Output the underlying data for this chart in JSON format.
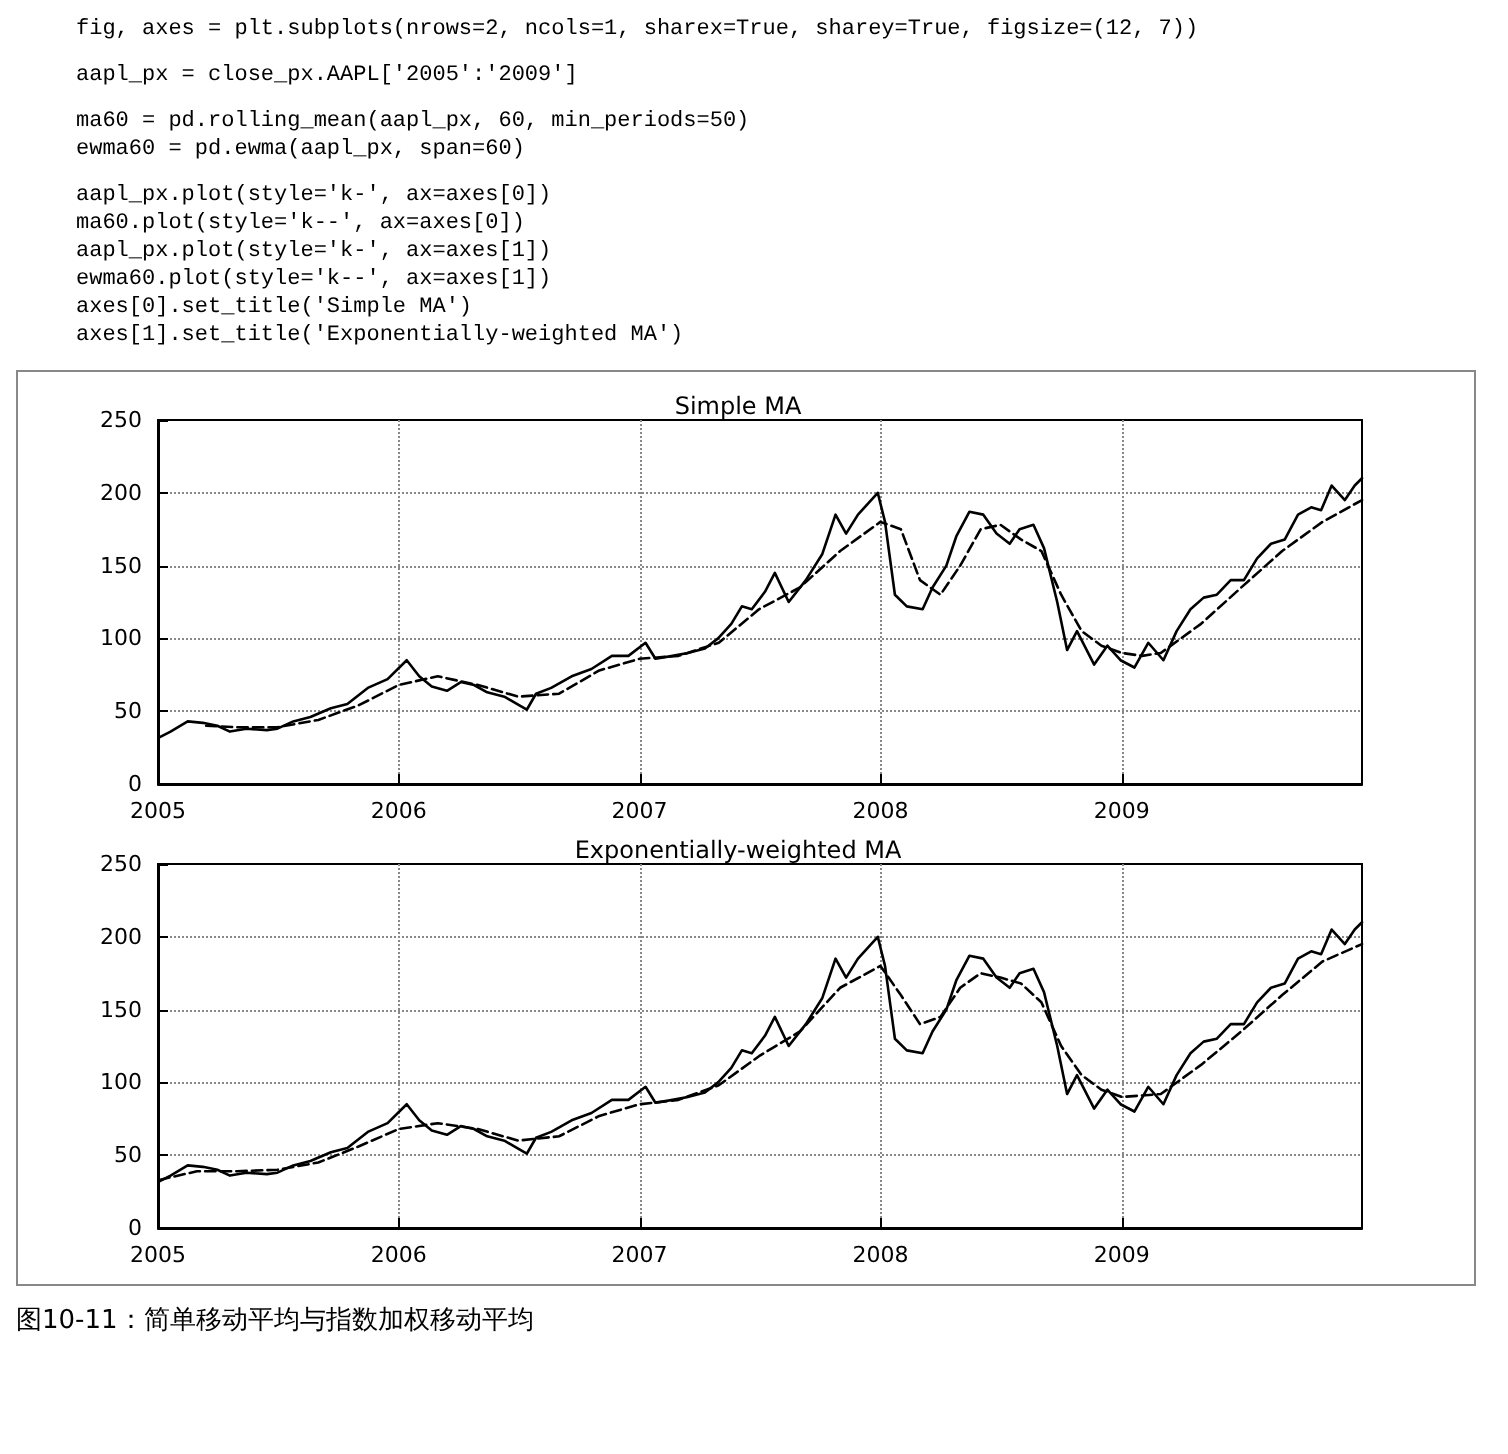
{
  "chart_data": [
    {
      "type": "line",
      "title": "Simple MA",
      "annotations": [
        "fig, axes = plt.subplots(nrows=2, ncols=1, sharex=True, sharey=True, figsize=(12, 7))",
        "aapl_px = close_px.AAPL['2005':'2009']",
        "ma60 = pd.rolling_mean(aapl_px, 60, min_periods=50)",
        "ewma60 = pd.ewma(aapl_px, span=60)",
        "aapl_px.plot(style='k-', ax=axes[0])",
        "ma60.plot(style='k--', ax=axes[0])",
        "aapl_px.plot(style='k-', ax=axes[1])",
        "ewma60.plot(style='k--', ax=axes[1])",
        "axes[0].set_title('Simple MA')",
        "axes[1].set_title('Exponentially-weighted MA')"
      ],
      "xlim": [
        "2005-01-01",
        "2009-12-31"
      ],
      "xticks": [
        "2005",
        "2006",
        "2007",
        "2008",
        "2009"
      ],
      "ylim": [
        0,
        250
      ],
      "yticks": [
        0,
        50,
        100,
        150,
        200,
        250
      ],
      "grid": true,
      "marker": "none",
      "series": [
        {
          "color": "#000000",
          "line_style": "solid",
          "x": [
            "2005-01-03",
            "2005-01-20",
            "2005-02-15",
            "2005-03-10",
            "2005-04-01",
            "2005-04-20",
            "2005-05-15",
            "2005-06-15",
            "2005-07-01",
            "2005-07-25",
            "2005-08-20",
            "2005-09-20",
            "2005-10-15",
            "2005-11-15",
            "2005-12-15",
            "2006-01-13",
            "2006-02-01",
            "2006-02-20",
            "2006-03-15",
            "2006-04-05",
            "2006-04-25",
            "2006-05-15",
            "2006-06-10",
            "2006-07-14",
            "2006-07-28",
            "2006-08-20",
            "2006-09-20",
            "2006-10-20",
            "2006-11-20",
            "2006-12-15",
            "2007-01-10",
            "2007-01-25",
            "2007-02-20",
            "2007-03-15",
            "2007-04-10",
            "2007-04-30",
            "2007-05-20",
            "2007-06-05",
            "2007-06-20",
            "2007-07-10",
            "2007-07-25",
            "2007-08-15",
            "2007-09-10",
            "2007-10-05",
            "2007-10-25",
            "2007-11-10",
            "2007-11-28",
            "2007-12-28",
            "2008-01-08",
            "2008-01-23",
            "2008-02-10",
            "2008-03-05",
            "2008-03-20",
            "2008-04-10",
            "2008-04-25",
            "2008-05-15",
            "2008-06-05",
            "2008-06-25",
            "2008-07-15",
            "2008-07-30",
            "2008-08-20",
            "2008-09-05",
            "2008-09-25",
            "2008-10-10",
            "2008-10-25",
            "2008-11-20",
            "2008-12-10",
            "2008-12-30",
            "2009-01-20",
            "2009-02-10",
            "2009-03-05",
            "2009-03-25",
            "2009-04-15",
            "2009-05-05",
            "2009-05-25",
            "2009-06-15",
            "2009-07-05",
            "2009-07-25",
            "2009-08-15",
            "2009-09-05",
            "2009-09-25",
            "2009-10-15",
            "2009-10-30",
            "2009-11-15",
            "2009-12-05",
            "2009-12-20",
            "2009-12-31"
          ],
          "values": [
            32,
            36,
            43,
            42,
            40,
            36,
            38,
            37,
            38,
            43,
            46,
            52,
            55,
            66,
            72,
            85,
            74,
            67,
            64,
            70,
            68,
            63,
            60,
            51,
            62,
            66,
            74,
            79,
            88,
            88,
            97,
            86,
            88,
            90,
            93,
            100,
            110,
            122,
            120,
            132,
            145,
            125,
            140,
            158,
            185,
            172,
            185,
            200,
            180,
            130,
            122,
            120,
            135,
            150,
            170,
            187,
            185,
            172,
            165,
            175,
            178,
            162,
            125,
            92,
            105,
            82,
            95,
            85,
            80,
            97,
            85,
            105,
            120,
            128,
            130,
            140,
            140,
            155,
            165,
            168,
            185,
            190,
            188,
            205,
            195,
            205,
            210
          ]
        },
        {
          "color": "#000000",
          "line_style": "dashed",
          "x": [
            "2005-03-15",
            "2005-05-01",
            "2005-07-01",
            "2005-09-01",
            "2005-11-01",
            "2006-01-01",
            "2006-03-01",
            "2006-05-01",
            "2006-07-01",
            "2006-09-01",
            "2006-11-01",
            "2007-01-01",
            "2007-03-01",
            "2007-05-01",
            "2007-07-01",
            "2007-09-01",
            "2007-11-01",
            "2008-01-01",
            "2008-02-01",
            "2008-03-01",
            "2008-04-01",
            "2008-05-01",
            "2008-06-01",
            "2008-07-01",
            "2008-08-01",
            "2008-09-01",
            "2008-10-01",
            "2008-11-01",
            "2008-12-01",
            "2009-01-01",
            "2009-02-01",
            "2009-03-01",
            "2009-05-01",
            "2009-07-01",
            "2009-09-01",
            "2009-11-01",
            "2009-12-31"
          ],
          "values": [
            40,
            39,
            39,
            44,
            54,
            68,
            74,
            68,
            60,
            62,
            78,
            86,
            88,
            97,
            120,
            135,
            160,
            180,
            175,
            140,
            130,
            150,
            175,
            178,
            168,
            160,
            130,
            105,
            95,
            90,
            88,
            90,
            110,
            135,
            160,
            180,
            195
          ]
        }
      ]
    },
    {
      "type": "line",
      "title": "Exponentially-weighted MA",
      "annotations": [
        "图10-11：简单移动平均与指数加权移动平均"
      ],
      "xlim": [
        "2005-01-01",
        "2009-12-31"
      ],
      "xticks": [
        "2005",
        "2006",
        "2007",
        "2008",
        "2009"
      ],
      "ylim": [
        0,
        250
      ],
      "yticks": [
        0,
        50,
        100,
        150,
        200,
        250
      ],
      "grid": true,
      "marker": "none",
      "series": [
        {
          "color": "#000000",
          "line_style": "solid",
          "x": [
            "2005-01-03",
            "2005-01-20",
            "2005-02-15",
            "2005-03-10",
            "2005-04-01",
            "2005-04-20",
            "2005-05-15",
            "2005-06-15",
            "2005-07-01",
            "2005-07-25",
            "2005-08-20",
            "2005-09-20",
            "2005-10-15",
            "2005-11-15",
            "2005-12-15",
            "2006-01-13",
            "2006-02-01",
            "2006-02-20",
            "2006-03-15",
            "2006-04-05",
            "2006-04-25",
            "2006-05-15",
            "2006-06-10",
            "2006-07-14",
            "2006-07-28",
            "2006-08-20",
            "2006-09-20",
            "2006-10-20",
            "2006-11-20",
            "2006-12-15",
            "2007-01-10",
            "2007-01-25",
            "2007-02-20",
            "2007-03-15",
            "2007-04-10",
            "2007-04-30",
            "2007-05-20",
            "2007-06-05",
            "2007-06-20",
            "2007-07-10",
            "2007-07-25",
            "2007-08-15",
            "2007-09-10",
            "2007-10-05",
            "2007-10-25",
            "2007-11-10",
            "2007-11-28",
            "2007-12-28",
            "2008-01-08",
            "2008-01-23",
            "2008-02-10",
            "2008-03-05",
            "2008-03-20",
            "2008-04-10",
            "2008-04-25",
            "2008-05-15",
            "2008-06-05",
            "2008-06-25",
            "2008-07-15",
            "2008-07-30",
            "2008-08-20",
            "2008-09-05",
            "2008-09-25",
            "2008-10-10",
            "2008-10-25",
            "2008-11-20",
            "2008-12-10",
            "2008-12-30",
            "2009-01-20",
            "2009-02-10",
            "2009-03-05",
            "2009-03-25",
            "2009-04-15",
            "2009-05-05",
            "2009-05-25",
            "2009-06-15",
            "2009-07-05",
            "2009-07-25",
            "2009-08-15",
            "2009-09-05",
            "2009-09-25",
            "2009-10-15",
            "2009-10-30",
            "2009-11-15",
            "2009-12-05",
            "2009-12-20",
            "2009-12-31"
          ],
          "values": [
            32,
            36,
            43,
            42,
            40,
            36,
            38,
            37,
            38,
            43,
            46,
            52,
            55,
            66,
            72,
            85,
            74,
            67,
            64,
            70,
            68,
            63,
            60,
            51,
            62,
            66,
            74,
            79,
            88,
            88,
            97,
            86,
            88,
            90,
            93,
            100,
            110,
            122,
            120,
            132,
            145,
            125,
            140,
            158,
            185,
            172,
            185,
            200,
            180,
            130,
            122,
            120,
            135,
            150,
            170,
            187,
            185,
            172,
            165,
            175,
            178,
            162,
            125,
            92,
            105,
            82,
            95,
            85,
            80,
            97,
            85,
            105,
            120,
            128,
            130,
            140,
            140,
            155,
            165,
            168,
            185,
            190,
            188,
            205,
            195,
            205,
            210
          ]
        },
        {
          "color": "#000000",
          "line_style": "dashed",
          "x": [
            "2005-01-03",
            "2005-03-01",
            "2005-05-01",
            "2005-07-01",
            "2005-09-01",
            "2005-11-01",
            "2006-01-01",
            "2006-03-01",
            "2006-05-01",
            "2006-07-01",
            "2006-09-01",
            "2006-11-01",
            "2007-01-01",
            "2007-03-01",
            "2007-05-01",
            "2007-07-01",
            "2007-09-01",
            "2007-11-01",
            "2008-01-01",
            "2008-02-01",
            "2008-03-01",
            "2008-04-01",
            "2008-05-01",
            "2008-06-01",
            "2008-07-01",
            "2008-08-01",
            "2008-09-01",
            "2008-10-01",
            "2008-11-01",
            "2008-12-01",
            "2009-01-01",
            "2009-03-01",
            "2009-05-01",
            "2009-07-01",
            "2009-09-01",
            "2009-11-01",
            "2009-12-31"
          ],
          "values": [
            33,
            39,
            39,
            40,
            45,
            56,
            68,
            72,
            68,
            60,
            63,
            77,
            85,
            88,
            98,
            118,
            135,
            165,
            180,
            160,
            140,
            145,
            165,
            175,
            172,
            168,
            155,
            125,
            105,
            95,
            90,
            92,
            112,
            135,
            160,
            183,
            195
          ]
        }
      ]
    }
  ]
}
